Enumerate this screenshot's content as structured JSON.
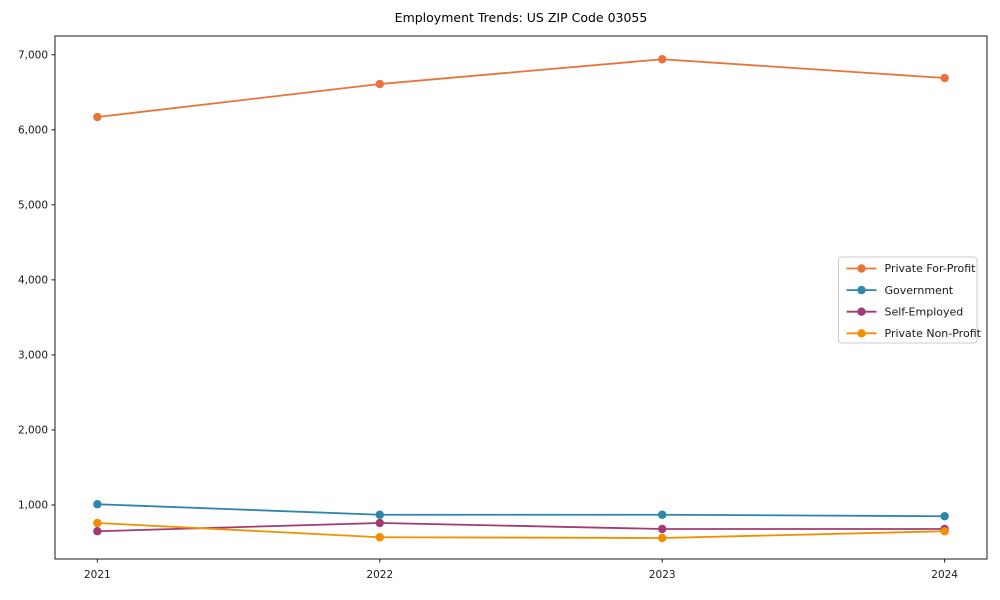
{
  "page": {
    "background": "#ffffff",
    "frame_color": "#1a1a1a"
  },
  "chart_data": {
    "type": "line",
    "title": "Employment Trends: US ZIP Code 03055",
    "xlabel": "",
    "ylabel": "",
    "grid": false,
    "legend_position": "center right",
    "x": [
      2021,
      2022,
      2023,
      2024
    ],
    "x_tick_labels": [
      "2021",
      "2022",
      "2023",
      "2024"
    ],
    "y_ticks": [
      1000,
      2000,
      3000,
      4000,
      5000,
      6000,
      7000
    ],
    "y_tick_labels": [
      "1,000",
      "2,000",
      "3,000",
      "4,000",
      "5,000",
      "6,000",
      "7,000"
    ],
    "xlim": [
      2020.85,
      2024.15
    ],
    "ylim": [
      280,
      7250
    ],
    "series": [
      {
        "name": "Private For-Profit",
        "color": "#e8743b",
        "values": [
          6170,
          6610,
          6940,
          6690
        ]
      },
      {
        "name": "Government",
        "color": "#2e86ab",
        "values": [
          1010,
          870,
          870,
          850
        ]
      },
      {
        "name": "Self-Employed",
        "color": "#a23b72",
        "values": [
          650,
          760,
          680,
          680
        ]
      },
      {
        "name": "Private Non-Profit",
        "color": "#f18f01",
        "values": [
          760,
          570,
          560,
          650
        ]
      }
    ]
  }
}
